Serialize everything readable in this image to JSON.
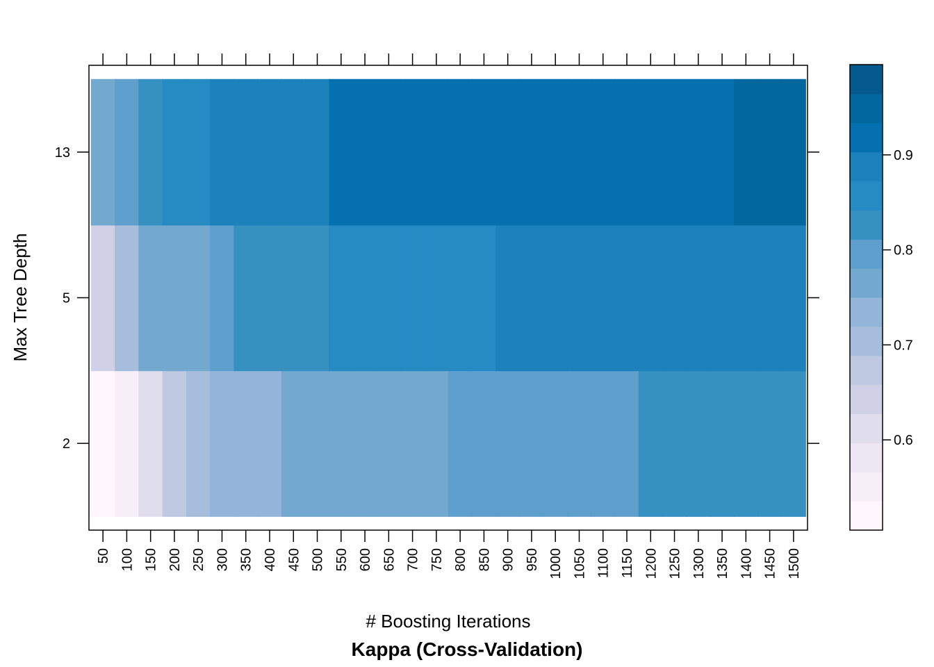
{
  "chart_data": {
    "type": "heatmap",
    "xlabel": "# Boosting Iterations",
    "ylabel": "Max Tree Depth",
    "subtitle": "Kappa (Cross-Validation)",
    "x": [
      50,
      100,
      150,
      200,
      250,
      300,
      350,
      400,
      450,
      500,
      550,
      600,
      650,
      700,
      750,
      800,
      850,
      900,
      950,
      1000,
      1050,
      1100,
      1150,
      1200,
      1250,
      1300,
      1350,
      1400,
      1450,
      1500
    ],
    "y": [
      2,
      5,
      13
    ],
    "z": [
      [
        0.51,
        0.56,
        0.61,
        0.66,
        0.7,
        0.73,
        0.73,
        0.73,
        0.76,
        0.76,
        0.76,
        0.78,
        0.78,
        0.78,
        0.78,
        0.81,
        0.81,
        0.81,
        0.81,
        0.81,
        0.81,
        0.81,
        0.81,
        0.83,
        0.83,
        0.83,
        0.83,
        0.83,
        0.83,
        0.83
      ],
      [
        0.63,
        0.69,
        0.76,
        0.78,
        0.78,
        0.81,
        0.83,
        0.83,
        0.83,
        0.83,
        0.86,
        0.86,
        0.86,
        0.86,
        0.86,
        0.86,
        0.86,
        0.88,
        0.88,
        0.88,
        0.88,
        0.88,
        0.88,
        0.88,
        0.88,
        0.88,
        0.88,
        0.88,
        0.88,
        0.88
      ],
      [
        0.78,
        0.81,
        0.84,
        0.86,
        0.86,
        0.88,
        0.88,
        0.88,
        0.88,
        0.88,
        0.91,
        0.91,
        0.91,
        0.91,
        0.91,
        0.91,
        0.91,
        0.91,
        0.91,
        0.91,
        0.91,
        0.91,
        0.91,
        0.91,
        0.91,
        0.91,
        0.91,
        0.95,
        0.95,
        0.95
      ]
    ],
    "colorbar": {
      "min": 0.505,
      "max": 0.995,
      "ticks": [
        0.6,
        0.7,
        0.8,
        0.9
      ],
      "colors": [
        "#fff7fb",
        "#f6eff7",
        "#ece7f2",
        "#e0dded",
        "#d0d1e6",
        "#bfc9e2",
        "#a6bddb",
        "#93b5d9",
        "#74a9cf",
        "#5f9fcd",
        "#3690c0",
        "#268bc3",
        "#1d81bc",
        "#0570b0",
        "#03679f",
        "#045a8d"
      ]
    }
  }
}
